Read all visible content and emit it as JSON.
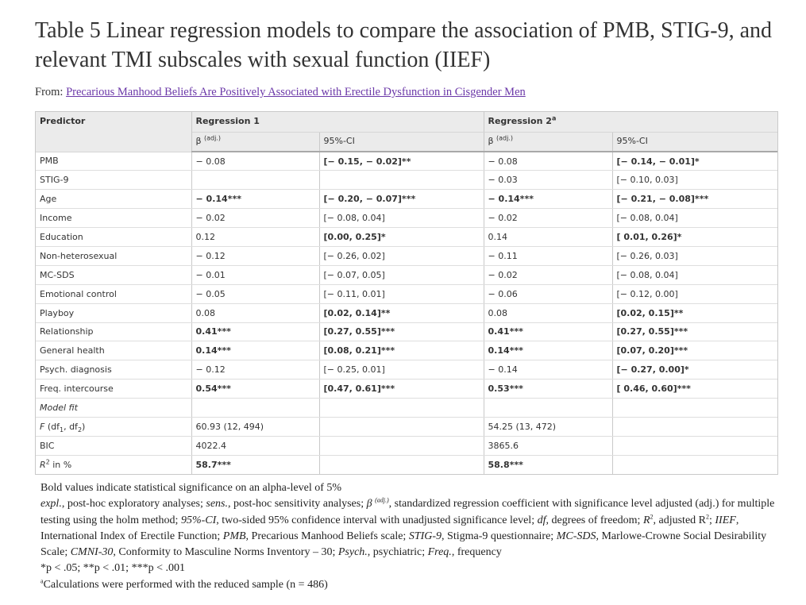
{
  "title": "Table 5 Linear regression models to compare the association of PMB, STIG-9, and relevant TMI subscales with sexual function (IIEF)",
  "from_label": "From:",
  "from_link": "Precarious Manhood Beliefs Are Positively Associated with Erectile Dysfunction in Cisgender Men",
  "table": {
    "header": {
      "predictor": "Predictor",
      "regression1": "Regression 1",
      "regression2": "Regression 2",
      "regression2_sup": "a",
      "beta": "β",
      "beta_sup": "(adj.)",
      "ci": "95%-CI"
    },
    "rows": [
      {
        "label": "PMB",
        "r1b": "− 0.08",
        "r1ci": "[− 0.15, − 0.02]**",
        "r2b": "− 0.08",
        "r2ci": "[− 0.14, − 0.01]*"
      },
      {
        "label": "STIG-9",
        "r1b": "",
        "r1ci": "",
        "r2b": "− 0.03",
        "r2ci": "[− 0.10, 0.03]"
      },
      {
        "label": "Age",
        "r1b": "− 0.14***",
        "r1ci": "[− 0.20, − 0.07]***",
        "r2b": "− 0.14***",
        "r2ci": "[− 0.21, − 0.08]***"
      },
      {
        "label": "Income",
        "r1b": "− 0.02",
        "r1ci": "[− 0.08, 0.04]",
        "r2b": "− 0.02",
        "r2ci": "[− 0.08, 0.04]"
      },
      {
        "label": "Education",
        "r1b": "0.12",
        "r1ci": "[0.00, 0.25]*",
        "r2b": "0.14",
        "r2ci": "[ 0.01, 0.26]*"
      },
      {
        "label": "Non-heterosexual",
        "r1b": "− 0.12",
        "r1ci": "[− 0.26, 0.02]",
        "r2b": "− 0.11",
        "r2ci": "[− 0.26, 0.03]"
      },
      {
        "label": "MC-SDS",
        "r1b": "− 0.01",
        "r1ci": "[− 0.07, 0.05]",
        "r2b": "− 0.02",
        "r2ci": "[− 0.08, 0.04]"
      },
      {
        "label": "Emotional control",
        "r1b": "− 0.05",
        "r1ci": "[− 0.11, 0.01]",
        "r2b": "− 0.06",
        "r2ci": "[− 0.12, 0.00]"
      },
      {
        "label": "Playboy",
        "r1b": "0.08",
        "r1ci": "[0.02, 0.14]**",
        "r2b": "0.08",
        "r2ci": "[0.02, 0.15]**"
      },
      {
        "label": "Relationship",
        "r1b": "0.41***",
        "r1ci": "[0.27, 0.55]***",
        "r2b": "0.41***",
        "r2ci": "[0.27, 0.55]***"
      },
      {
        "label": "General health",
        "r1b": "0.14***",
        "r1ci": "[0.08, 0.21]***",
        "r2b": "0.14***",
        "r2ci": "[0.07, 0.20]***"
      },
      {
        "label": "Psych. diagnosis",
        "r1b": "− 0.12",
        "r1ci": "[− 0.25, 0.01]",
        "r2b": "− 0.14",
        "r2ci": "[− 0.27, 0.00]*"
      },
      {
        "label": "Freq. intercourse",
        "r1b": "0.54***",
        "r1ci": "[0.47, 0.61]***",
        "r2b": "0.53***",
        "r2ci": "[ 0.46, 0.60]***"
      },
      {
        "label": "Model fit",
        "r1b": "",
        "r1ci": "",
        "r2b": "",
        "r2ci": ""
      },
      {
        "label": "F (df1, df2)",
        "r1b": "60.93 (12, 494)",
        "r1ci": "",
        "r2b": "54.25 (13, 472)",
        "r2ci": ""
      },
      {
        "label": "BIC",
        "r1b": "4022.4",
        "r1ci": "",
        "r2b": "3865.6",
        "r2ci": ""
      },
      {
        "label": "R2 in %",
        "r1b": "58.7***",
        "r1ci": "",
        "r2b": "58.8***",
        "r2ci": ""
      }
    ]
  },
  "notes": {
    "bold_note": "Bold values indicate statistical significance on an alpha-level of 5%",
    "abbrev_expl": "expl.",
    "abbrev_expl_def": ", post-hoc exploratory analyses; ",
    "abbrev_sens": "sens.",
    "abbrev_sens_def": ", post-hoc sensitivity analyses; ",
    "abbrev_beta": "β",
    "abbrev_beta_sup": "(adj.)",
    "abbrev_beta_def": ", standardized regression coefficient with significance level adjusted (adj.) for multiple testing using the holm method; ",
    "abbrev_ci": "95%-CI",
    "abbrev_ci_def": ", two-sided 95% confidence interval with unadjusted significance level; ",
    "abbrev_df": "df",
    "abbrev_df_def": ", degrees of freedom; ",
    "abbrev_r2": "R",
    "abbrev_r2_def": ", adjusted R",
    "abbrev_r2_end": "; ",
    "abbrev_iief": "IIEF",
    "abbrev_iief_def": ", International Index of Erectile Function; ",
    "abbrev_pmb": "PMB",
    "abbrev_pmb_def": ", Precarious Manhood Beliefs scale; ",
    "abbrev_stig": "STIG-9",
    "abbrev_stig_def": ", Stigma-9 questionnaire; ",
    "abbrev_mcsds": "MC-SDS",
    "abbrev_mcsds_def": ", Marlowe-Crowne Social Desirability Scale; ",
    "abbrev_cmni": "CMNI-30",
    "abbrev_cmni_def": ", Conformity to Masculine Norms Inventory – 30; ",
    "abbrev_psych": "Psych.",
    "abbrev_psych_def": ", psychiatric; ",
    "abbrev_freq": "Freq.",
    "abbrev_freq_def": ", frequency",
    "sig_levels": "*p < .05; **p < .01; ***p < .001",
    "footnote_a": "Calculations were performed with the reduced sample (n = 486)"
  }
}
